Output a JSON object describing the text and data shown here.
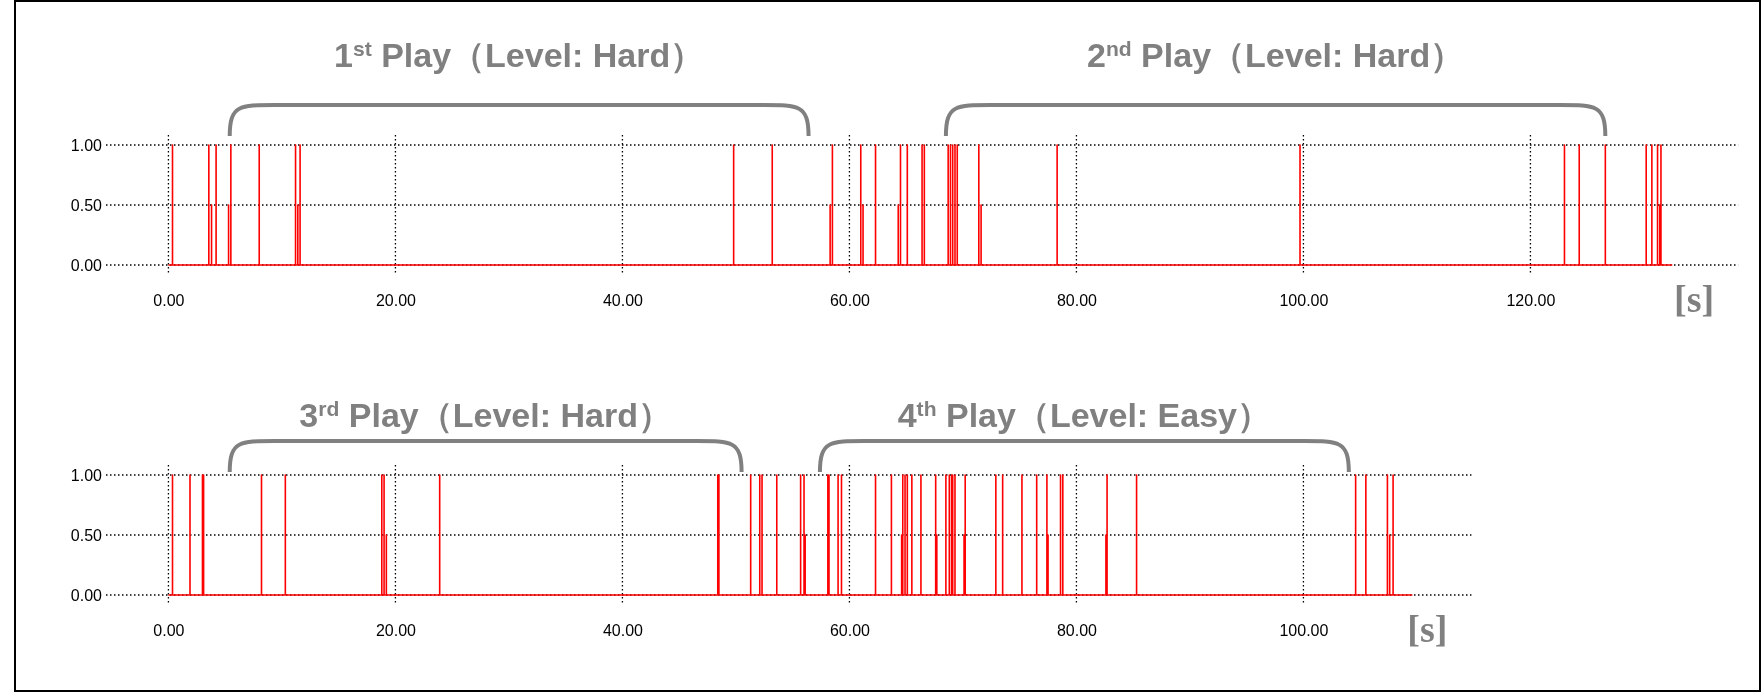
{
  "chart_data": [
    {
      "type": "line",
      "annotations": [
        "1$^{st}$ Play（Level: Hard）",
        "2$^{nd}$ Play（Level: Hard）"
      ],
      "xlabel": "[s]",
      "x": [
        0,
        0.36,
        0.36,
        0.36,
        3.56,
        3.56,
        3.56,
        3.8,
        3.8,
        3.8,
        4.2,
        4.2,
        4.2,
        5.3,
        5.3,
        5.3,
        5.5,
        5.5,
        5.5,
        8.0,
        8.0,
        8.0,
        11.2,
        11.2,
        11.2,
        11.4,
        11.4,
        11.4,
        11.6,
        11.6,
        11.6,
        49.8,
        49.8,
        49.8,
        53.2,
        53.2,
        53.2,
        58.3,
        58.3,
        58.3,
        58.5,
        58.5,
        58.5,
        61.0,
        61.0,
        61.0,
        61.2,
        61.2,
        61.2,
        62.3,
        62.3,
        62.3,
        64.3,
        64.3,
        64.3,
        64.5,
        64.5,
        64.5,
        65.1,
        65.1,
        65.1,
        66.4,
        66.4,
        66.4,
        66.6,
        66.6,
        66.6,
        68.7,
        68.7,
        68.7,
        68.9,
        68.9,
        68.9,
        69.1,
        69.1,
        69.1,
        69.3,
        69.3,
        69.3,
        69.5,
        69.5,
        69.5,
        71.4,
        71.4,
        71.4,
        71.6,
        71.6,
        71.6,
        78.3,
        78.3,
        78.3,
        99.7,
        99.7,
        99.7,
        123.0,
        123.0,
        123.0,
        124.3,
        124.3,
        124.3,
        126.6,
        126.6,
        126.6,
        130.2,
        130.2,
        130.2,
        130.7,
        130.7,
        130.7,
        131.2,
        131.2,
        131.2,
        131.4,
        131.4,
        131.4,
        131.5,
        131.5,
        131.5,
        132.5
      ],
      "series": [
        {
          "color": "#ff0000",
          "values": [
            0,
            0,
            1,
            0,
            0,
            1,
            0,
            0,
            0.5,
            0,
            0,
            1,
            0,
            0,
            0.5,
            0,
            0,
            1,
            0,
            0,
            1,
            0,
            0,
            1,
            0,
            0,
            0.5,
            0,
            0,
            1,
            0,
            0,
            1,
            0,
            0,
            1,
            0,
            0,
            0.5,
            0,
            0,
            1,
            0,
            0,
            1,
            0,
            0,
            0.5,
            0,
            0,
            1,
            0,
            0,
            0.5,
            0,
            0,
            1,
            0,
            0,
            1,
            0,
            0,
            1,
            0,
            0,
            1,
            0,
            0,
            1,
            0,
            0,
            1,
            0,
            0,
            1,
            0,
            0,
            1,
            0,
            0,
            1,
            0,
            0,
            1,
            0,
            0,
            0.5,
            0,
            0,
            1,
            0,
            0,
            1,
            0,
            0,
            1,
            0,
            0,
            1,
            0,
            0,
            1,
            0,
            0,
            1,
            0,
            0,
            1,
            0,
            0,
            1,
            0,
            0,
            0.5,
            0,
            0,
            1,
            0,
            0
          ]
        }
      ],
      "xlim": [
        -5.5,
        138.3
      ],
      "xticks": [
        {
          "value": 0,
          "label": "0.00"
        },
        {
          "value": 20,
          "label": "20.00"
        },
        {
          "value": 40,
          "label": "40.00"
        },
        {
          "value": 60,
          "label": "60.00"
        },
        {
          "value": 80,
          "label": "80.00"
        },
        {
          "value": 100,
          "label": "100.00"
        },
        {
          "value": 120,
          "label": "120.00"
        }
      ],
      "ylim": [
        0,
        1
      ],
      "yticks": [
        {
          "value": 0,
          "label": "0.00"
        },
        {
          "value": 0.5,
          "label": "0.50"
        },
        {
          "value": 1,
          "label": "1.00"
        }
      ],
      "grid": true
    },
    {
      "type": "line",
      "annotations": [
        "3$^{rd}$ Play（Level: Hard）",
        "4$^{th}$ Play（Level: Easy）"
      ],
      "xlabel": "[s]",
      "x": [
        0,
        0.36,
        0.36,
        0.36,
        1.9,
        1.9,
        1.9,
        3.0,
        3.0,
        3.0,
        3.1,
        3.1,
        3.1,
        8.2,
        8.2,
        8.2,
        10.3,
        10.3,
        10.3,
        18.8,
        18.8,
        18.8,
        19.0,
        19.0,
        19.0,
        19.2,
        19.2,
        19.2,
        23.9,
        23.9,
        23.9,
        48.4,
        48.4,
        48.4,
        48.5,
        48.5,
        48.5,
        51.3,
        51.3,
        51.3,
        52.1,
        52.1,
        52.1,
        52.3,
        52.3,
        52.3,
        53.6,
        53.6,
        53.6,
        55.7,
        55.7,
        55.7,
        56.0,
        56.0,
        56.0,
        56.1,
        56.1,
        56.1,
        58.1,
        58.1,
        58.1,
        58.2,
        58.2,
        58.2,
        59.0,
        59.0,
        59.0,
        59.3,
        59.3,
        59.3,
        62.3,
        62.3,
        62.3,
        63.7,
        63.7,
        63.7,
        64.6,
        64.6,
        64.6,
        64.7,
        64.7,
        64.7,
        64.9,
        64.9,
        64.9,
        65.1,
        65.1,
        65.1,
        65.5,
        65.5,
        65.5,
        66.3,
        66.3,
        66.3,
        67.6,
        67.6,
        67.6,
        67.7,
        67.7,
        67.7,
        68.5,
        68.5,
        68.5,
        68.8,
        68.8,
        68.8,
        69.0,
        69.0,
        69.0,
        69.1,
        69.1,
        69.1,
        69.3,
        69.3,
        69.3,
        70.1,
        70.1,
        70.1,
        70.2,
        70.2,
        70.2,
        72.9,
        72.9,
        72.9,
        73.5,
        73.5,
        73.5,
        75.2,
        75.2,
        75.2,
        76.5,
        76.5,
        76.5,
        77.4,
        77.4,
        77.4,
        77.5,
        77.5,
        77.5,
        78.6,
        78.6,
        78.6,
        78.8,
        78.8,
        78.8,
        82.6,
        82.6,
        82.6,
        82.7,
        82.7,
        82.7,
        85.3,
        85.3,
        85.3,
        104.6,
        104.6,
        104.6,
        105.5,
        105.5,
        105.5,
        107.4,
        107.4,
        107.4,
        107.6,
        107.6,
        107.6,
        107.9,
        107.9,
        107.9,
        109.6
      ],
      "series": [
        {
          "color": "#ff0000",
          "values": [
            0,
            0,
            1,
            0,
            0,
            1,
            0,
            0,
            1,
            0,
            0,
            1,
            0,
            0,
            1,
            0,
            0,
            1,
            0,
            0,
            1,
            0,
            0,
            1,
            0,
            0,
            0.5,
            0,
            0,
            1,
            0,
            0,
            1,
            0,
            0,
            1,
            0,
            0,
            1,
            0,
            0,
            1,
            0,
            0,
            1,
            0,
            0,
            1,
            0,
            0,
            1,
            0,
            0,
            1,
            0,
            0,
            0.5,
            0,
            0,
            1,
            0,
            0,
            1,
            0,
            0,
            1,
            0,
            0,
            1,
            0,
            0,
            1,
            0,
            0,
            1,
            0,
            0,
            0.5,
            0,
            0,
            1,
            0,
            0,
            1,
            0,
            0,
            1,
            0,
            0,
            1,
            0,
            0,
            1,
            0,
            0,
            1,
            0,
            0,
            0.5,
            0,
            0,
            1,
            0,
            0,
            1,
            0,
            0,
            1,
            0,
            0,
            1,
            0,
            0,
            1,
            0,
            0,
            0.5,
            0,
            0,
            1,
            0,
            0,
            1,
            0,
            0,
            1,
            0,
            0,
            1,
            0,
            0,
            1,
            0,
            0,
            1,
            0,
            0,
            0.5,
            0,
            0,
            1,
            0,
            0,
            1,
            0,
            0,
            0.5,
            0,
            0,
            1,
            0,
            0,
            1,
            0,
            0,
            1,
            0,
            0,
            1,
            0,
            0,
            1,
            0,
            0,
            0.5,
            0,
            0,
            1,
            0,
            0
          ]
        }
      ],
      "xlim": [
        -5.5,
        114.8
      ],
      "xticks": [
        {
          "value": 0,
          "label": "0.00"
        },
        {
          "value": 20,
          "label": "20.00"
        },
        {
          "value": 40,
          "label": "40.00"
        },
        {
          "value": 60,
          "label": "60.00"
        },
        {
          "value": 80,
          "label": "80.00"
        },
        {
          "value": 100,
          "label": "100.00"
        }
      ],
      "ylim": [
        0,
        1
      ],
      "yticks": [
        {
          "value": 0,
          "label": "0.00"
        },
        {
          "value": 0.5,
          "label": "0.50"
        },
        {
          "value": 1,
          "label": "1.00"
        }
      ],
      "grid": true
    }
  ]
}
